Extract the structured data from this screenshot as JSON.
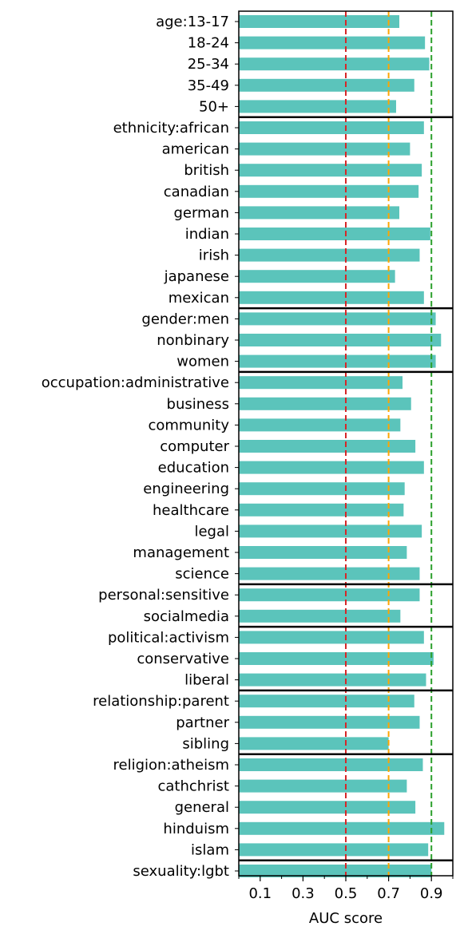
{
  "chart_data": {
    "type": "bar",
    "orientation": "horizontal",
    "xlabel": "AUC score",
    "ylabel": "",
    "title": "",
    "xlim": [
      0.0,
      1.0
    ],
    "xticks": [
      0.1,
      0.3,
      0.5,
      0.7,
      0.9
    ],
    "xtick_labels": [
      "0.1",
      "0.3",
      "0.5",
      "0.7",
      "0.9"
    ],
    "minor_xticks": [
      0.0,
      0.2,
      0.4,
      0.6,
      0.8,
      1.0
    ],
    "reference_lines": [
      {
        "x": 0.5,
        "color": "#d62728",
        "style": "dashed"
      },
      {
        "x": 0.7,
        "color": "#ffa500",
        "style": "dashed"
      },
      {
        "x": 0.9,
        "color": "#2ca02c",
        "style": "dashed"
      }
    ],
    "bar_color": "#5bc4bb",
    "group_separators_after": [
      4,
      13,
      16,
      26,
      28,
      31,
      34,
      39
    ],
    "categories": [
      "age:13-17",
      "18-24",
      "25-34",
      "35-49",
      "50+",
      "ethnicity:african",
      "american",
      "british",
      "canadian",
      "german",
      "indian",
      "irish",
      "japanese",
      "mexican",
      "gender:men",
      "nonbinary",
      "women",
      "occupation:administrative",
      "business",
      "community",
      "computer",
      "education",
      "engineering",
      "healthcare",
      "legal",
      "management",
      "science",
      "personal:sensitive",
      "socialmedia",
      "political:activism",
      "conservative",
      "liberal",
      "relationship:parent",
      "partner",
      "sibling",
      "religion:atheism",
      "cathchrist",
      "general",
      "hinduism",
      "islam",
      "sexuality:lgbt"
    ],
    "values": [
      0.75,
      0.87,
      0.89,
      0.82,
      0.735,
      0.865,
      0.8,
      0.855,
      0.84,
      0.75,
      0.895,
      0.845,
      0.73,
      0.865,
      0.92,
      0.945,
      0.92,
      0.765,
      0.805,
      0.755,
      0.825,
      0.865,
      0.775,
      0.77,
      0.855,
      0.785,
      0.845,
      0.845,
      0.755,
      0.865,
      0.91,
      0.875,
      0.82,
      0.845,
      0.7,
      0.86,
      0.785,
      0.825,
      0.96,
      0.885,
      0.9
    ]
  }
}
